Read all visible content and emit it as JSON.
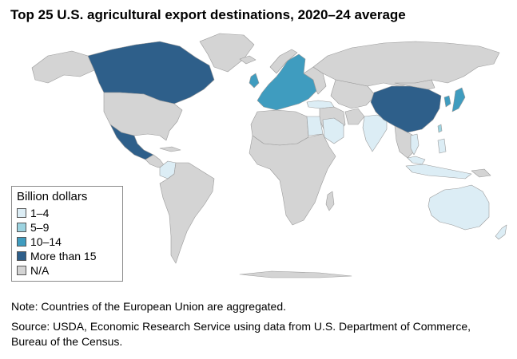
{
  "title": "Top 25 U.S. agricultural export destinations, 2020–24 average",
  "colors": {
    "ocean": "#ffffff",
    "na": "#d4d4d4",
    "border": "#9a9a9a",
    "tier1": "#dcedf5",
    "tier2": "#9cd3e0",
    "tier3": "#3f9cbf",
    "tier4": "#2e5f8a"
  },
  "legend": {
    "title": "Billion dollars",
    "items": [
      {
        "label": "1–4",
        "color": "#dcedf5"
      },
      {
        "label": "5–9",
        "color": "#9cd3e0"
      },
      {
        "label": "10–14",
        "color": "#3f9cbf"
      },
      {
        "label": "More than 15",
        "color": "#2e5f8a"
      },
      {
        "label": "N/A",
        "color": "#d4d4d4"
      }
    ]
  },
  "note": "Note: Countries of the European Union are aggregated.",
  "source": "Source: USDA, Economic Research Service using data from U.S. Department of Commerce, Bureau of the Census."
}
